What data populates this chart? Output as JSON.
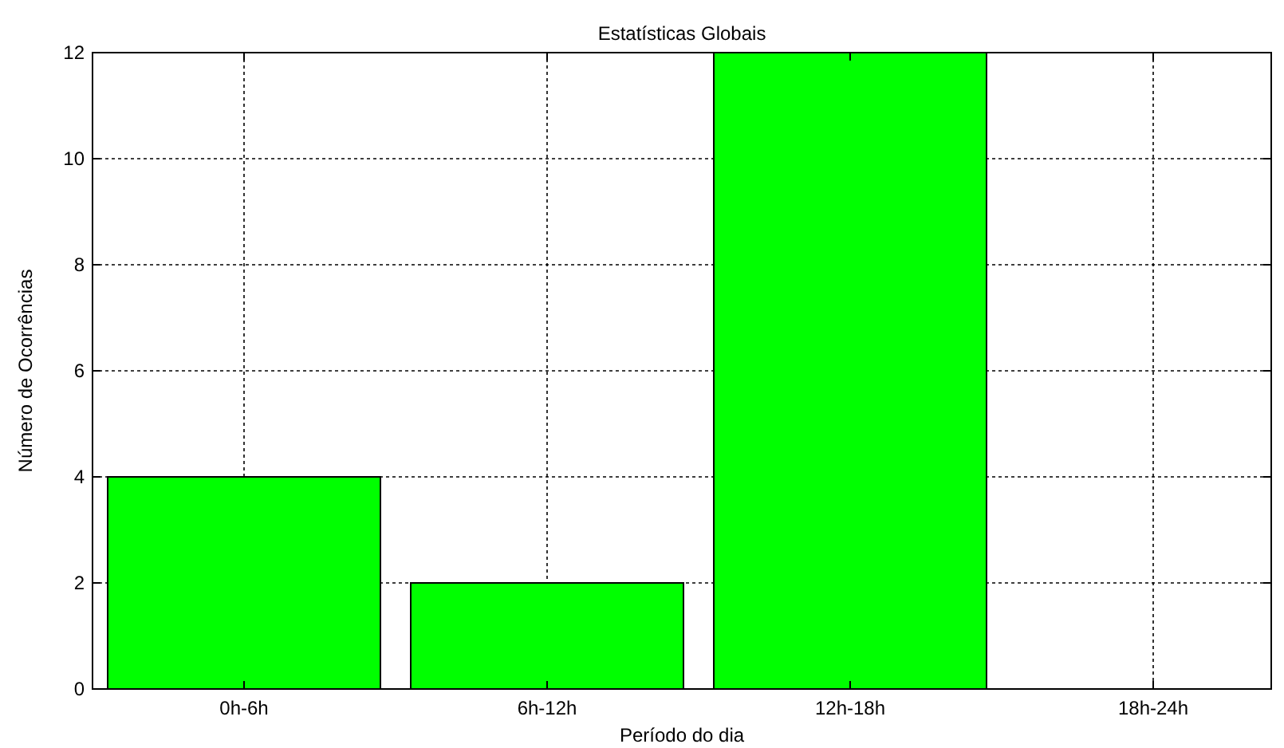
{
  "chart_data": {
    "type": "bar",
    "title": "Estatísticas Globais",
    "xlabel": "Período do dia",
    "ylabel": "Número de Ocorrências",
    "categories": [
      "0h-6h",
      "6h-12h",
      "12h-18h",
      "18h-24h"
    ],
    "values": [
      4,
      2,
      12,
      0
    ],
    "color": "#00ff00",
    "ylim": [
      0,
      12
    ],
    "yticks": [
      0,
      2,
      4,
      6,
      8,
      10,
      12
    ],
    "grid": true
  }
}
